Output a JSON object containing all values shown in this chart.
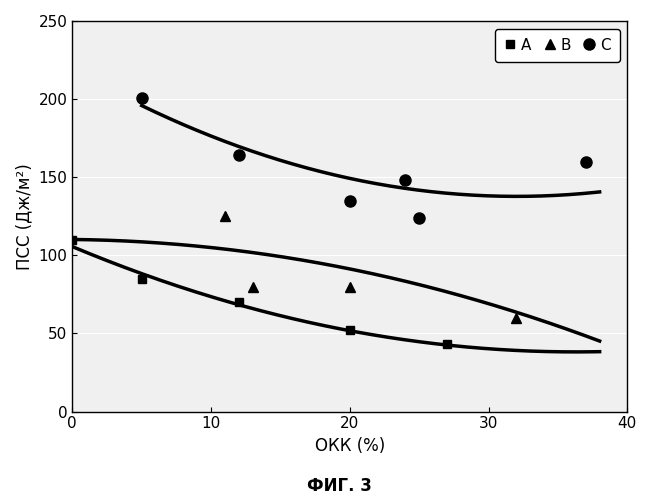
{
  "title": "",
  "xlabel": "ОКК (%)",
  "ylabel": "ПСС (Дж/м²)",
  "fig_label": "ФИГ. 3",
  "xlim": [
    0,
    40
  ],
  "ylim": [
    0,
    250
  ],
  "xticks": [
    0,
    10,
    20,
    30,
    40
  ],
  "yticks": [
    0,
    50,
    100,
    150,
    200,
    250
  ],
  "series_A": {
    "x": [
      0,
      5,
      12,
      20,
      27
    ],
    "y": [
      110,
      85,
      70,
      52,
      43
    ],
    "marker": "s",
    "color": "black",
    "label": "A",
    "markersize": 6
  },
  "series_B": {
    "x": [
      11,
      13,
      20,
      32
    ],
    "y": [
      125,
      80,
      80,
      60
    ],
    "marker": "^",
    "color": "black",
    "label": "B",
    "markersize": 7
  },
  "series_C": {
    "x": [
      5,
      12,
      20,
      24,
      25,
      37
    ],
    "y": [
      201,
      164,
      135,
      148,
      124,
      160
    ],
    "marker": "o",
    "color": "black",
    "label": "C",
    "markersize": 8
  },
  "curve_A": {
    "x": [
      0,
      5,
      12,
      20,
      27,
      38
    ],
    "y": [
      108,
      84,
      70,
      52,
      43,
      38
    ],
    "x_range": [
      0,
      38
    ]
  },
  "curve_B": {
    "x": [
      0,
      11,
      13,
      20,
      32,
      38
    ],
    "y": [
      104,
      118,
      106,
      80,
      56,
      52
    ],
    "x_range": [
      0,
      38
    ]
  },
  "curve_C": {
    "x": [
      5,
      12,
      20,
      24,
      32,
      38
    ],
    "y": [
      200,
      162,
      148,
      148,
      140,
      138
    ],
    "x_range": [
      5,
      38
    ]
  },
  "background_color": "#f0f0f0",
  "line_color": "black",
  "line_width": 2.5
}
